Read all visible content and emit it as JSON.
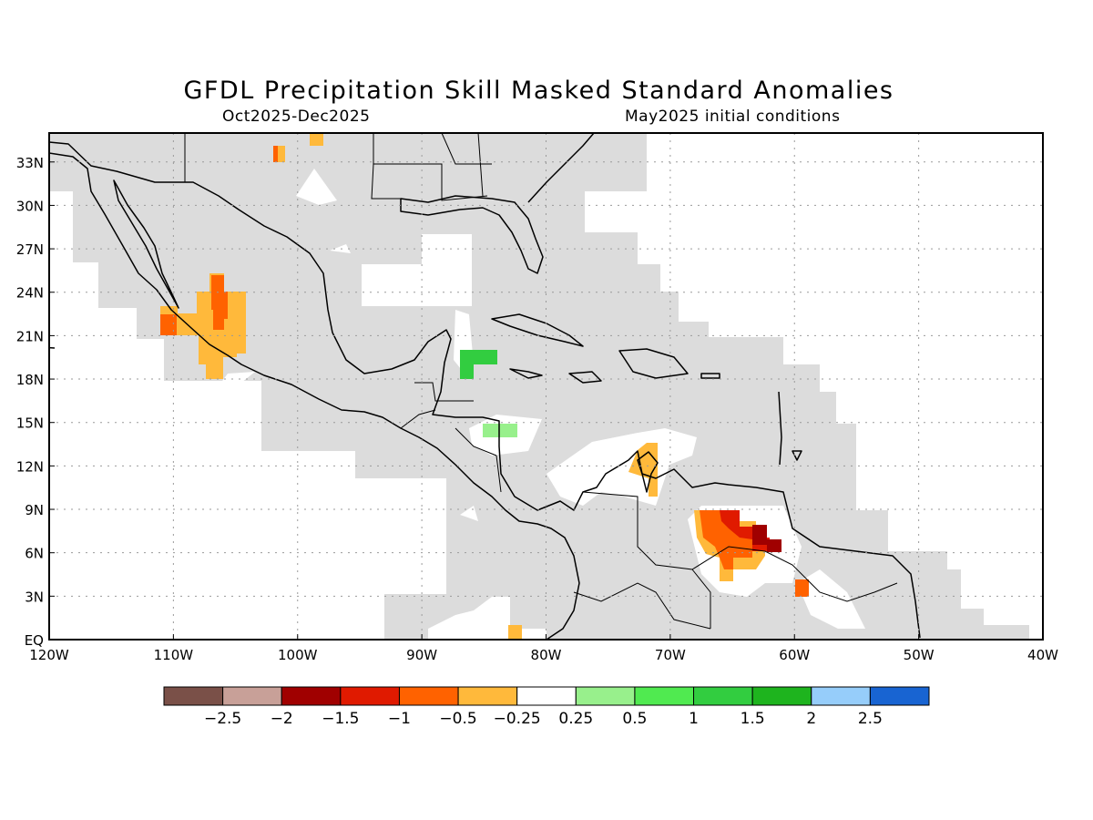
{
  "title": "GFDL Precipitation Skill Masked Standard Anomalies",
  "subtitle_left": "Oct2025-Dec2025",
  "subtitle_right": "May2025 initial conditions",
  "axes": {
    "lon_min": -120,
    "lon_max": -40,
    "lat_min": 0,
    "lat_max": 35,
    "lon_ticks": [
      {
        "v": -120,
        "label": "120W"
      },
      {
        "v": -110,
        "label": "110W"
      },
      {
        "v": -100,
        "label": "100W"
      },
      {
        "v": -90,
        "label": "90W"
      },
      {
        "v": -80,
        "label": "80W"
      },
      {
        "v": -70,
        "label": "70W"
      },
      {
        "v": -60,
        "label": "60W"
      },
      {
        "v": -50,
        "label": "50W"
      },
      {
        "v": -40,
        "label": "40W"
      }
    ],
    "lat_ticks": [
      {
        "v": 0,
        "label": "EQ"
      },
      {
        "v": 3,
        "label": "3N"
      },
      {
        "v": 6,
        "label": "6N"
      },
      {
        "v": 9,
        "label": "9N"
      },
      {
        "v": 12,
        "label": "12N"
      },
      {
        "v": 15,
        "label": "15N"
      },
      {
        "v": 18,
        "label": "18N"
      },
      {
        "v": 21,
        "label": "21N"
      },
      {
        "v": 24,
        "label": "24N"
      },
      {
        "v": 27,
        "label": "27N"
      },
      {
        "v": 30,
        "label": "30N"
      },
      {
        "v": 33,
        "label": "33N"
      }
    ],
    "grid": true
  },
  "legend": {
    "colors": [
      "#7a5048",
      "#c8a098",
      "#a00000",
      "#e01a00",
      "#ff6200",
      "#ffb93b",
      "#ffffff",
      "#98f08c",
      "#50ea50",
      "#32cd40",
      "#1eb41e",
      "#96cdfa",
      "#1864d2"
    ],
    "labels": [
      "−2.5",
      "−2",
      "−1.5",
      "−1",
      "−0.5",
      "−0.25",
      "0.25",
      "0.5",
      "1",
      "1.5",
      "2",
      "2.5"
    ]
  },
  "colors": {
    "mask": "#dcdcdc",
    "land_outline": "#000000"
  },
  "chart_data": {
    "type": "heatmap",
    "variable": "precipitation standard anomaly",
    "regions": [
      {
        "lon": [
          -111,
          -103
        ],
        "lat": [
          17.5,
          23.5
        ],
        "value": -0.4
      },
      {
        "lon": [
          -107,
          -106
        ],
        "lat": [
          20,
          25
        ],
        "value": -0.8
      },
      {
        "lon": [
          -87,
          -84
        ],
        "lat": [
          18,
          20
        ],
        "value": 1.2
      },
      {
        "lon": [
          -85,
          -82
        ],
        "lat": [
          14,
          15
        ],
        "value": 0.4
      },
      {
        "lon": [
          -73,
          -71
        ],
        "lat": [
          10,
          13.5
        ],
        "value": -0.3
      },
      {
        "lon": [
          -68,
          -61
        ],
        "lat": [
          4,
          9
        ],
        "value": -0.9
      },
      {
        "lon": [
          -65,
          -61
        ],
        "lat": [
          6,
          8.5
        ],
        "value": -1.6
      },
      {
        "lon": [
          -60,
          -59
        ],
        "lat": [
          3,
          4
        ],
        "value": -0.8
      },
      {
        "lon": [
          -83,
          -82
        ],
        "lat": [
          0,
          1
        ],
        "value": -0.3
      }
    ]
  }
}
